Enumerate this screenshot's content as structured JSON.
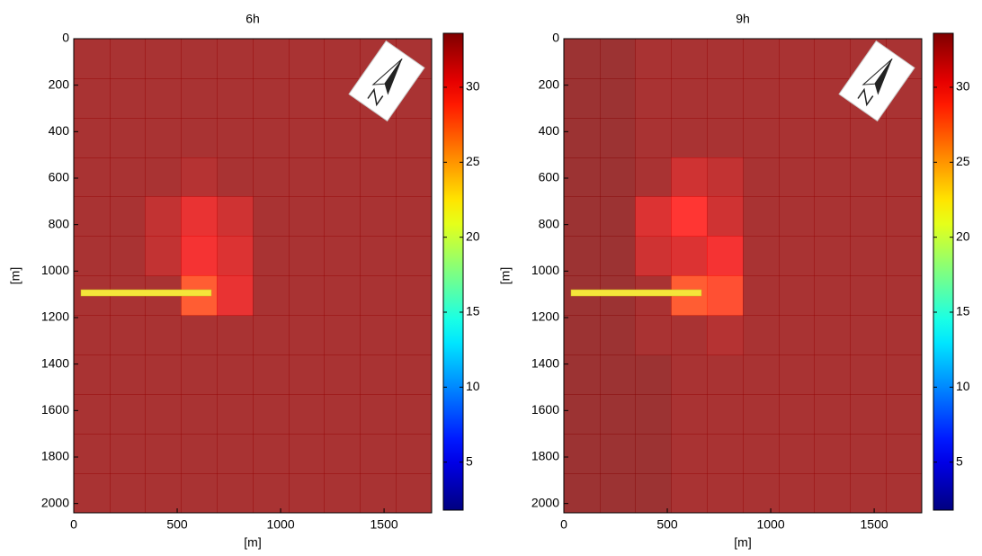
{
  "chart_data": [
    {
      "type": "heatmap",
      "title": "6h",
      "xlabel": "[m]",
      "ylabel": "[m]",
      "colormap": "jet",
      "x": [
        86.5,
        259.5,
        432.5,
        605.5,
        778.5,
        951.5,
        1124.5,
        1297.5,
        1470.5,
        1643.5
      ],
      "y": [
        85,
        255,
        425,
        595,
        765,
        935,
        1105,
        1275,
        1445,
        1615,
        1785,
        1955
      ],
      "values": [
        [
          33,
          33,
          33,
          33,
          33,
          33,
          33,
          33,
          33,
          33
        ],
        [
          33,
          33,
          33,
          33,
          33,
          33,
          33,
          33,
          33,
          33
        ],
        [
          33,
          33,
          33,
          33,
          33,
          33,
          33,
          33,
          33,
          33
        ],
        [
          33,
          33,
          33,
          32.5,
          33,
          33,
          33,
          33,
          33,
          33
        ],
        [
          33,
          33,
          32,
          30.5,
          31.5,
          33,
          33,
          33,
          33,
          33
        ],
        [
          33,
          33,
          32,
          30,
          31,
          33,
          33,
          33,
          33,
          33
        ],
        [
          33,
          33,
          33,
          28,
          30.5,
          33,
          33,
          33,
          33,
          33
        ],
        [
          33,
          33,
          33,
          33,
          33,
          33,
          33,
          33,
          33,
          33
        ],
        [
          33,
          33,
          33,
          33,
          33,
          33,
          33,
          33,
          33,
          33
        ],
        [
          33,
          33,
          33,
          33,
          33,
          33,
          33,
          33,
          33,
          33
        ],
        [
          33,
          33,
          33,
          33,
          33,
          33,
          33,
          33,
          33,
          33
        ],
        [
          33,
          33,
          33,
          33,
          33,
          33,
          33,
          33,
          33,
          33
        ]
      ],
      "xlim": [
        0,
        1730
      ],
      "ylim": [
        0,
        2040
      ],
      "y_reversed": true,
      "xticks": [
        0,
        500,
        1000,
        1500
      ],
      "yticks": [
        0,
        200,
        400,
        600,
        800,
        1000,
        1200,
        1400,
        1600,
        1800,
        2000
      ],
      "clim": [
        1.8,
        33.6
      ],
      "cticks": [
        5,
        10,
        15,
        20,
        25,
        30
      ]
    },
    {
      "type": "heatmap",
      "title": "9h",
      "xlabel": "[m]",
      "ylabel": "[m]",
      "colormap": "jet",
      "x": [
        86.5,
        259.5,
        432.5,
        605.5,
        778.5,
        951.5,
        1124.5,
        1297.5,
        1470.5,
        1643.5
      ],
      "y": [
        85,
        255,
        425,
        595,
        765,
        935,
        1105,
        1275,
        1445,
        1615,
        1785,
        1955
      ],
      "values": [
        [
          33.5,
          33.5,
          33,
          33,
          33,
          33,
          33,
          33,
          33,
          33
        ],
        [
          33.5,
          33.5,
          33,
          33,
          33,
          33,
          33,
          33,
          33,
          33
        ],
        [
          33.5,
          33.5,
          33,
          33,
          33,
          33,
          33,
          33,
          33,
          33
        ],
        [
          33.5,
          33.5,
          33,
          31.5,
          32,
          33,
          33,
          33,
          33,
          33
        ],
        [
          33.5,
          33.5,
          31,
          29.5,
          31.5,
          33,
          33,
          33,
          33,
          33
        ],
        [
          33.5,
          33.5,
          31.5,
          31,
          30,
          33,
          33,
          33,
          33,
          33
        ],
        [
          33.5,
          33.5,
          33,
          28,
          28.5,
          33,
          33,
          33,
          33,
          33
        ],
        [
          33.5,
          33.5,
          33,
          33,
          32.5,
          33,
          33,
          33,
          33,
          33
        ],
        [
          33.5,
          33.5,
          33.5,
          33,
          33,
          33,
          33,
          33,
          33,
          33
        ],
        [
          33.5,
          33.5,
          33.5,
          33,
          33,
          33,
          33,
          33,
          33,
          33
        ],
        [
          33.5,
          33.5,
          33.5,
          33,
          33,
          33,
          33,
          33,
          33,
          33
        ],
        [
          33.5,
          33.5,
          33.5,
          33,
          33,
          33,
          33,
          33,
          33,
          33
        ]
      ],
      "xlim": [
        0,
        1730
      ],
      "ylim": [
        0,
        2040
      ],
      "y_reversed": true,
      "xticks": [
        0,
        500,
        1000,
        1500
      ],
      "yticks": [
        0,
        200,
        400,
        600,
        800,
        1000,
        1200,
        1400,
        1600,
        1800,
        2000
      ],
      "clim": [
        1.8,
        33.6
      ],
      "cticks": [
        5,
        10,
        15,
        20,
        25,
        30
      ]
    }
  ]
}
